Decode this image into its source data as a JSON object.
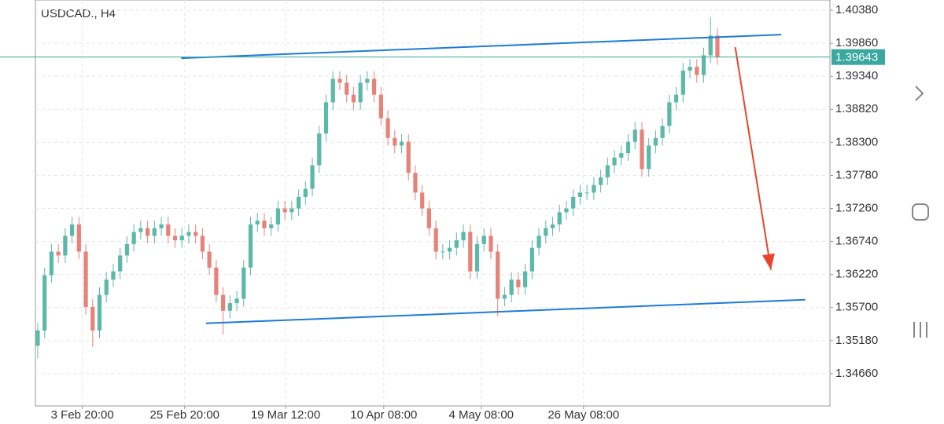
{
  "chart_data": {
    "type": "candlestick",
    "title": "USDCAD., H4",
    "up_color": "#5cb8a8",
    "down_color": "#e5837b",
    "open": [
      1.351,
      1.3534,
      1.3621,
      1.3658,
      1.3652,
      1.3683,
      1.3701,
      1.3658,
      1.3571,
      1.3534,
      1.359,
      1.3614,
      1.3627,
      1.3652,
      1.367,
      1.3689,
      1.3695,
      1.3683,
      1.3695,
      1.3701,
      1.3683,
      1.3676,
      1.3683,
      1.3689,
      1.3683,
      1.3658,
      1.3633,
      1.359,
      1.3565,
      1.3577,
      1.3584,
      1.3633,
      1.3701,
      1.3707,
      1.3695,
      1.3701,
      1.3726,
      1.372,
      1.3726,
      1.3744,
      1.3757,
      1.3794,
      1.3844,
      1.3893,
      1.393,
      1.3924,
      1.3905,
      1.3893,
      1.3924,
      1.393,
      1.3905,
      1.3868,
      1.3837,
      1.3825,
      1.3831,
      1.3782,
      1.3751,
      1.3726,
      1.3695,
      1.3658,
      1.3658,
      1.3664,
      1.3676,
      1.3689,
      1.3627,
      1.367,
      1.3683,
      1.3658,
      1.3584,
      1.359,
      1.3614,
      1.3602,
      1.3627,
      1.3664,
      1.3683,
      1.3695,
      1.3701,
      1.372,
      1.3726,
      1.3744,
      1.3751,
      1.3751,
      1.3763,
      1.3775,
      1.3794,
      1.3806,
      1.3813,
      1.3831,
      1.385,
      1.3788,
      1.3825,
      1.3837,
      1.3856,
      1.3893,
      1.3905,
      1.3943,
      1.3949,
      1.3936,
      1.3967,
      1.3998
    ],
    "high": [
      1.3546,
      1.3633,
      1.367,
      1.367,
      1.3695,
      1.3713,
      1.3713,
      1.367,
      1.3583,
      1.3602,
      1.3626,
      1.3639,
      1.3664,
      1.3682,
      1.3701,
      1.3707,
      1.3707,
      1.3707,
      1.3713,
      1.3713,
      1.3695,
      1.3695,
      1.3701,
      1.3701,
      1.3695,
      1.367,
      1.3645,
      1.3602,
      1.3589,
      1.3596,
      1.3645,
      1.3713,
      1.3719,
      1.3719,
      1.3713,
      1.3738,
      1.3738,
      1.3738,
      1.3756,
      1.3769,
      1.3806,
      1.3856,
      1.3905,
      1.3942,
      1.3942,
      1.3936,
      1.3917,
      1.3936,
      1.3942,
      1.3942,
      1.3917,
      1.388,
      1.3849,
      1.3843,
      1.3843,
      1.3794,
      1.3763,
      1.3738,
      1.3707,
      1.367,
      1.3676,
      1.3688,
      1.3701,
      1.3701,
      1.3682,
      1.3695,
      1.3695,
      1.367,
      1.3602,
      1.3626,
      1.3626,
      1.3639,
      1.3676,
      1.3695,
      1.3707,
      1.3713,
      1.3732,
      1.3738,
      1.3756,
      1.3763,
      1.3763,
      1.3775,
      1.3787,
      1.3806,
      1.3818,
      1.3825,
      1.3843,
      1.3862,
      1.3862,
      1.3837,
      1.3849,
      1.3868,
      1.3905,
      1.3917,
      1.3955,
      1.3961,
      1.3961,
      1.3979,
      1.4027,
      1.401
    ],
    "low": [
      1.349,
      1.3522,
      1.3609,
      1.364,
      1.364,
      1.3671,
      1.3646,
      1.3559,
      1.3508,
      1.3522,
      1.3578,
      1.3602,
      1.3615,
      1.364,
      1.3658,
      1.3677,
      1.3671,
      1.3671,
      1.3683,
      1.3671,
      1.3664,
      1.3664,
      1.3671,
      1.3671,
      1.3646,
      1.3621,
      1.3578,
      1.3528,
      1.3553,
      1.3565,
      1.3572,
      1.3621,
      1.3689,
      1.3683,
      1.3683,
      1.3689,
      1.3708,
      1.3708,
      1.3714,
      1.3732,
      1.3745,
      1.3782,
      1.3832,
      1.3881,
      1.3912,
      1.3893,
      1.3881,
      1.3881,
      1.3912,
      1.3893,
      1.3856,
      1.3825,
      1.3813,
      1.3813,
      1.377,
      1.3739,
      1.3714,
      1.3683,
      1.3646,
      1.3646,
      1.3646,
      1.3652,
      1.3664,
      1.3615,
      1.3615,
      1.3658,
      1.3646,
      1.3556,
      1.3572,
      1.3578,
      1.359,
      1.359,
      1.3615,
      1.3652,
      1.3671,
      1.3683,
      1.3689,
      1.3708,
      1.3714,
      1.3732,
      1.3739,
      1.3739,
      1.3751,
      1.3763,
      1.3782,
      1.3794,
      1.3801,
      1.3819,
      1.3776,
      1.3776,
      1.3813,
      1.3825,
      1.3844,
      1.3881,
      1.3893,
      1.3931,
      1.3924,
      1.3924,
      1.3955,
      1.3952
    ],
    "close": [
      1.3534,
      1.3621,
      1.3658,
      1.3652,
      1.3683,
      1.3701,
      1.3658,
      1.3571,
      1.3534,
      1.359,
      1.3614,
      1.3627,
      1.3652,
      1.367,
      1.3689,
      1.3695,
      1.3683,
      1.3695,
      1.3701,
      1.3683,
      1.3676,
      1.3683,
      1.3689,
      1.3683,
      1.3658,
      1.3633,
      1.359,
      1.3565,
      1.3577,
      1.3584,
      1.3633,
      1.3701,
      1.3707,
      1.3695,
      1.3701,
      1.3726,
      1.372,
      1.3726,
      1.3744,
      1.3757,
      1.3794,
      1.3844,
      1.3893,
      1.393,
      1.3924,
      1.3905,
      1.3893,
      1.3924,
      1.393,
      1.3905,
      1.3868,
      1.3837,
      1.3825,
      1.3831,
      1.3782,
      1.3751,
      1.3726,
      1.3695,
      1.3658,
      1.3658,
      1.3664,
      1.3676,
      1.3689,
      1.3627,
      1.367,
      1.3683,
      1.3658,
      1.3584,
      1.359,
      1.3614,
      1.3602,
      1.3627,
      1.3664,
      1.3683,
      1.3695,
      1.3701,
      1.372,
      1.3726,
      1.3744,
      1.3751,
      1.3751,
      1.3763,
      1.3775,
      1.3794,
      1.3806,
      1.3813,
      1.3831,
      1.385,
      1.3788,
      1.3825,
      1.3837,
      1.3856,
      1.3893,
      1.3905,
      1.3943,
      1.3949,
      1.3936,
      1.3967,
      1.3998,
      1.3964
    ],
    "xlim": [
      -0.34,
      115.39
    ],
    "xticks": [
      {
        "value": 6.5,
        "label": "3 Feb 20:00"
      },
      {
        "value": 21.4,
        "label": "25 Feb 20:00"
      },
      {
        "value": 36.1,
        "label": "19 Mar 12:00"
      },
      {
        "value": 50.4,
        "label": "10 Apr 08:00"
      },
      {
        "value": 64.6,
        "label": "4 May 08:00"
      },
      {
        "value": 79.5,
        "label": "26 May 08:00"
      }
    ],
    "ylim": [
      1.34152,
      1.40541
    ],
    "yticks": [
      {
        "value": 1.4038,
        "label": "1.40380"
      },
      {
        "value": 1.3986,
        "label": "1.39860"
      },
      {
        "value": 1.3934,
        "label": "1.39340"
      },
      {
        "value": 1.3882,
        "label": "1.38820"
      },
      {
        "value": 1.383,
        "label": "1.38300"
      },
      {
        "value": 1.3778,
        "label": "1.37780"
      },
      {
        "value": 1.3726,
        "label": "1.37260"
      },
      {
        "value": 1.3674,
        "label": "1.36740"
      },
      {
        "value": 1.3622,
        "label": "1.36220"
      },
      {
        "value": 1.357,
        "label": "1.35700"
      },
      {
        "value": 1.3518,
        "label": "1.35180"
      },
      {
        "value": 1.3466,
        "label": "1.34660"
      }
    ],
    "grid": true,
    "current_price": 1.39643,
    "current_price_color": "#3aa89e",
    "trendlines": [
      {
        "color": "#1e7bd6",
        "x": [
          20.9,
          108.3
        ],
        "y": [
          1.39625,
          1.39996
        ]
      },
      {
        "color": "#1e7bd6",
        "x": [
          24.5,
          111.8
        ],
        "y": [
          1.35452,
          1.35824
        ]
      }
    ],
    "arrow": {
      "color": "#e8452c",
      "x": [
        101.6,
        106.8
      ],
      "y": [
        1.39798,
        1.36294
      ]
    }
  }
}
